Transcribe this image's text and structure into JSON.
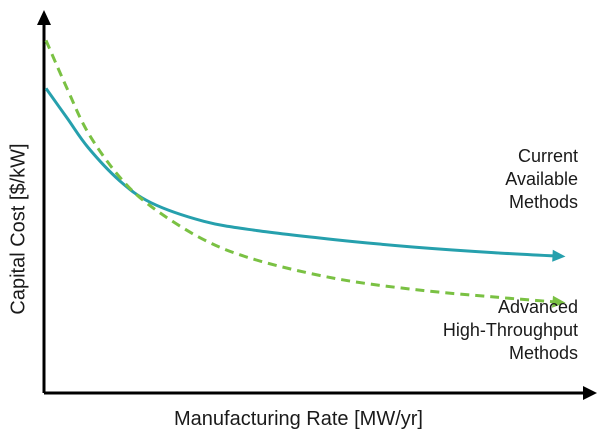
{
  "chart_data": {
    "type": "line",
    "title": "",
    "xlabel": "Manufacturing Rate [MW/yr]",
    "ylabel": "Capital Cost [$/kW]",
    "x_ticks_shown": false,
    "y_ticks_shown": false,
    "grid": false,
    "legend": "none (direct labels at right)",
    "xlim": [
      0,
      10
    ],
    "ylim": [
      0,
      10
    ],
    "series": [
      {
        "label_lines": [
          "Current",
          "Available",
          "Methods"
        ],
        "color": "#26a0ad",
        "style": "solid",
        "x": [
          0.0,
          0.4,
          0.8,
          1.4,
          2.0,
          3.0,
          4.0,
          5.5,
          7.0,
          8.5,
          9.8
        ],
        "y": [
          8.2,
          7.4,
          6.6,
          5.7,
          5.1,
          4.6,
          4.35,
          4.1,
          3.9,
          3.75,
          3.65
        ]
      },
      {
        "label_lines": [
          "Advanced",
          "High-Throughput",
          "Methods"
        ],
        "color": "#7ac143",
        "style": "dashed",
        "x": [
          0.0,
          0.4,
          0.8,
          1.4,
          2.0,
          3.0,
          4.0,
          5.5,
          7.0,
          8.5,
          9.8
        ],
        "y": [
          9.5,
          8.2,
          7.0,
          5.8,
          5.0,
          4.1,
          3.55,
          3.05,
          2.75,
          2.55,
          2.4
        ]
      }
    ]
  }
}
